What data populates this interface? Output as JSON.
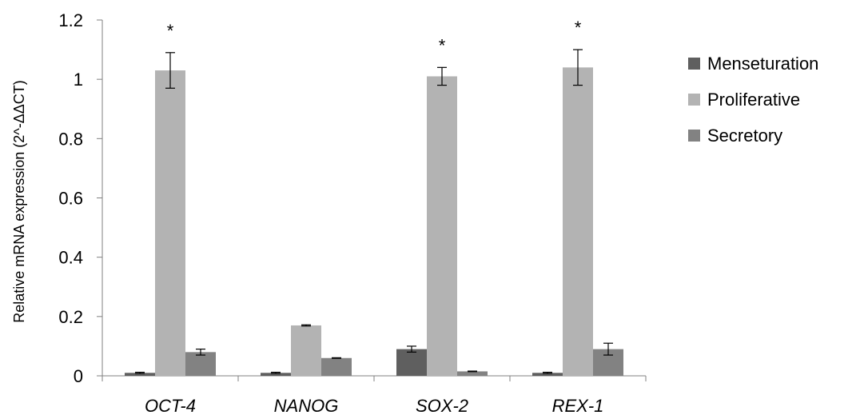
{
  "chart_data": {
    "type": "bar",
    "title": "",
    "xlabel": "",
    "ylabel": "Relative mRNA expression (2^-ΔΔCT)",
    "ylim": [
      0,
      1.2
    ],
    "yticks": [
      0,
      0.2,
      0.4,
      0.6,
      0.8,
      1,
      1.2
    ],
    "ytick_labels": [
      "0",
      "0.2",
      "0.4",
      "0.6",
      "0.8",
      "1",
      "1.2"
    ],
    "categories": [
      "OCT-4",
      "NANOG",
      "SOX-2",
      "REX-1"
    ],
    "series": [
      {
        "name": "Menseturation",
        "color": "#5f5f5f",
        "values": [
          0.01,
          0.01,
          0.09,
          0.01
        ],
        "errors": [
          0.002,
          0.002,
          0.01,
          0.002
        ]
      },
      {
        "name": "Proliferative",
        "color": "#b3b3b3",
        "values": [
          1.03,
          0.17,
          1.01,
          1.04
        ],
        "errors": [
          0.06,
          0.002,
          0.03,
          0.06
        ]
      },
      {
        "name": "Secretory",
        "color": "#828282",
        "values": [
          0.08,
          0.06,
          0.015,
          0.09
        ],
        "errors": [
          0.01,
          0.001,
          0.001,
          0.02
        ]
      }
    ],
    "annotations": [
      {
        "category": "OCT-4",
        "series": "Proliferative",
        "text": "*"
      },
      {
        "category": "SOX-2",
        "series": "Proliferative",
        "text": "*"
      },
      {
        "category": "REX-1",
        "series": "Proliferative",
        "text": "*"
      }
    ],
    "legend_position": "right",
    "grid": false
  }
}
